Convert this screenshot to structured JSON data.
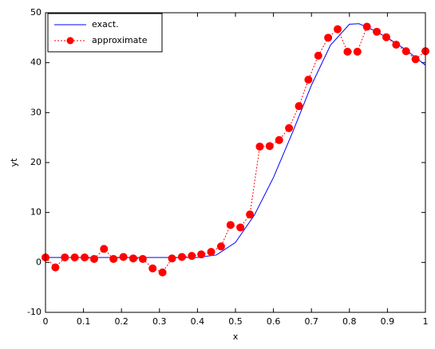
{
  "chart_data": {
    "type": "line",
    "xlabel": "x",
    "ylabel": "yt",
    "xlim": [
      0,
      1
    ],
    "ylim": [
      -10,
      50
    ],
    "xticks": [
      0,
      0.1,
      0.2,
      0.3,
      0.4,
      0.5,
      0.6,
      0.7,
      0.8,
      0.9,
      1
    ],
    "yticks": [
      -10,
      0,
      10,
      20,
      30,
      40,
      50
    ],
    "legend": "upper left",
    "series": [
      {
        "name": "exact.",
        "color": "#0000ff",
        "style": "solid",
        "marker": false,
        "x": [
          0,
          0.05,
          0.1,
          0.15,
          0.2,
          0.25,
          0.3,
          0.35,
          0.4,
          0.45,
          0.5,
          0.55,
          0.6,
          0.65,
          0.7,
          0.75,
          0.8,
          0.825,
          0.85,
          0.9,
          0.95,
          1
        ],
        "values": [
          1,
          1,
          1,
          1,
          1,
          1,
          1,
          1,
          1,
          1.5,
          4,
          9.5,
          17,
          26,
          35.5,
          43.5,
          47.7,
          47.8,
          47,
          45,
          42.5,
          39.5
        ]
      },
      {
        "name": "approximate",
        "color": "#ff0000",
        "style": "dotted",
        "marker": true,
        "x": [
          0,
          0.026,
          0.051,
          0.077,
          0.103,
          0.128,
          0.154,
          0.179,
          0.205,
          0.231,
          0.256,
          0.282,
          0.308,
          0.333,
          0.359,
          0.385,
          0.41,
          0.436,
          0.462,
          0.487,
          0.513,
          0.538,
          0.564,
          0.59,
          0.615,
          0.641,
          0.667,
          0.692,
          0.718,
          0.744,
          0.769,
          0.795,
          0.821,
          0.846,
          0.872,
          0.897,
          0.923,
          0.949,
          0.974,
          1
        ],
        "values": [
          1,
          -1,
          1,
          1,
          1,
          0.7,
          2.7,
          0.7,
          1.1,
          0.8,
          0.7,
          -1.2,
          -2,
          0.8,
          1.1,
          1.3,
          1.6,
          2.1,
          3.2,
          7.5,
          7,
          9.6,
          23.2,
          23.3,
          24.5,
          26.9,
          31.3,
          36.6,
          41.4,
          45,
          46.7,
          42.2,
          42.2,
          47.2,
          46.2,
          45.1,
          43.6,
          42.3,
          40.7,
          42.3
        ]
      }
    ]
  }
}
